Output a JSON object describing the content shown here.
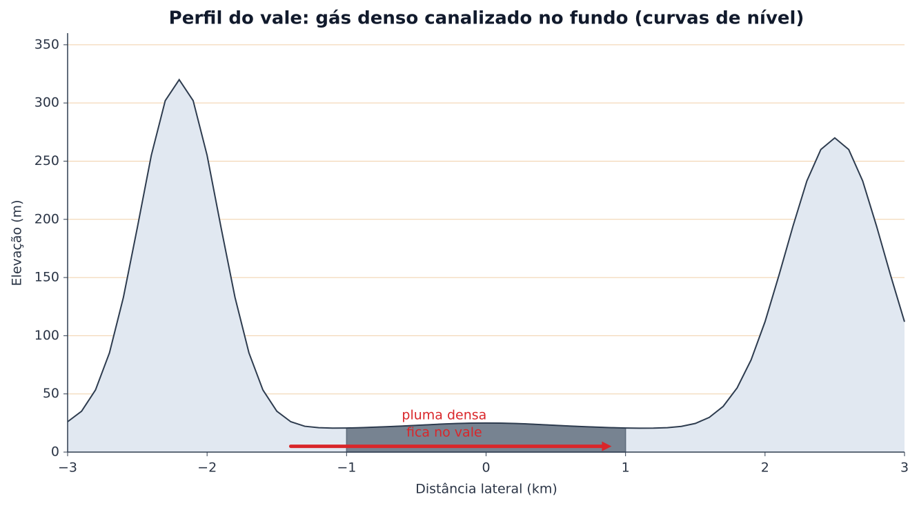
{
  "chart_data": {
    "type": "area",
    "title": "Perfil do vale: gás denso canalizado no fundo (curvas de nível)",
    "x_label": "Distância lateral (km)",
    "y_label": "Elevação (m)",
    "x": [
      -3,
      -2.9,
      -2.8,
      -2.7,
      -2.6,
      -2.5,
      -2.4,
      -2.3,
      -2.2,
      -2.1,
      -2,
      -1.9,
      -1.8,
      -1.7,
      -1.6,
      -1.5,
      -1.4,
      -1.3,
      -1.2,
      -1.1,
      -1,
      -0.9,
      -0.8,
      -0.7,
      -0.6,
      -0.5,
      -0.4,
      -0.3,
      -0.2,
      -0.1,
      0,
      0.1,
      0.2,
      0.3,
      0.4,
      0.5,
      0.6,
      0.7,
      0.8,
      0.9,
      1,
      1.1,
      1.2,
      1.3,
      1.4,
      1.5,
      1.6,
      1.7,
      1.8,
      1.9,
      2,
      2.1,
      2.2,
      2.3,
      2.4,
      2.5,
      2.6,
      2.7,
      2.8,
      2.9,
      3
    ],
    "series": [
      {
        "color": "#2d3b4e",
        "fill": "#e1e8f1",
        "values": [
          26.1,
          35.1,
          53.4,
          85.3,
          133,
          193,
          255,
          302,
          320,
          302,
          255,
          193,
          133,
          85.3,
          53.4,
          35.1,
          26.1,
          22.2,
          21.0,
          20.6,
          20.7,
          21.0,
          21.4,
          21.9,
          22.4,
          23.0,
          23.6,
          24.2,
          24.6,
          24.9,
          25.0,
          24.9,
          24.6,
          24.2,
          23.6,
          23.0,
          22.4,
          21.9,
          21.4,
          21.0,
          20.7,
          20.5,
          20.6,
          21.0,
          22.1,
          24.6,
          29.8,
          39.3,
          55.2,
          79.2,
          112,
          152,
          194,
          233,
          260,
          270,
          260,
          233,
          194,
          152,
          112
        ]
      }
    ],
    "plume": {
      "x_range": [
        -1,
        1
      ],
      "color": "#778391"
    },
    "annotation": {
      "lines": [
        "pluma densa",
        "fica no vale"
      ],
      "x": -0.3,
      "y": 24,
      "color": "#d9262a",
      "arrow_from": [
        -1.4,
        5
      ],
      "arrow_to": [
        0.9,
        5
      ]
    },
    "xlim": [
      -3,
      3
    ],
    "xticks": [
      {
        "value": -3,
        "label": "−3"
      },
      {
        "value": -2,
        "label": "−2"
      },
      {
        "value": -1,
        "label": "−1"
      },
      0,
      1,
      2,
      3
    ],
    "ylim": [
      0,
      360
    ],
    "yticks": [
      0,
      50,
      100,
      150,
      200,
      250,
      300,
      350
    ],
    "grid": true,
    "grid_color": "#f0cfa8"
  }
}
